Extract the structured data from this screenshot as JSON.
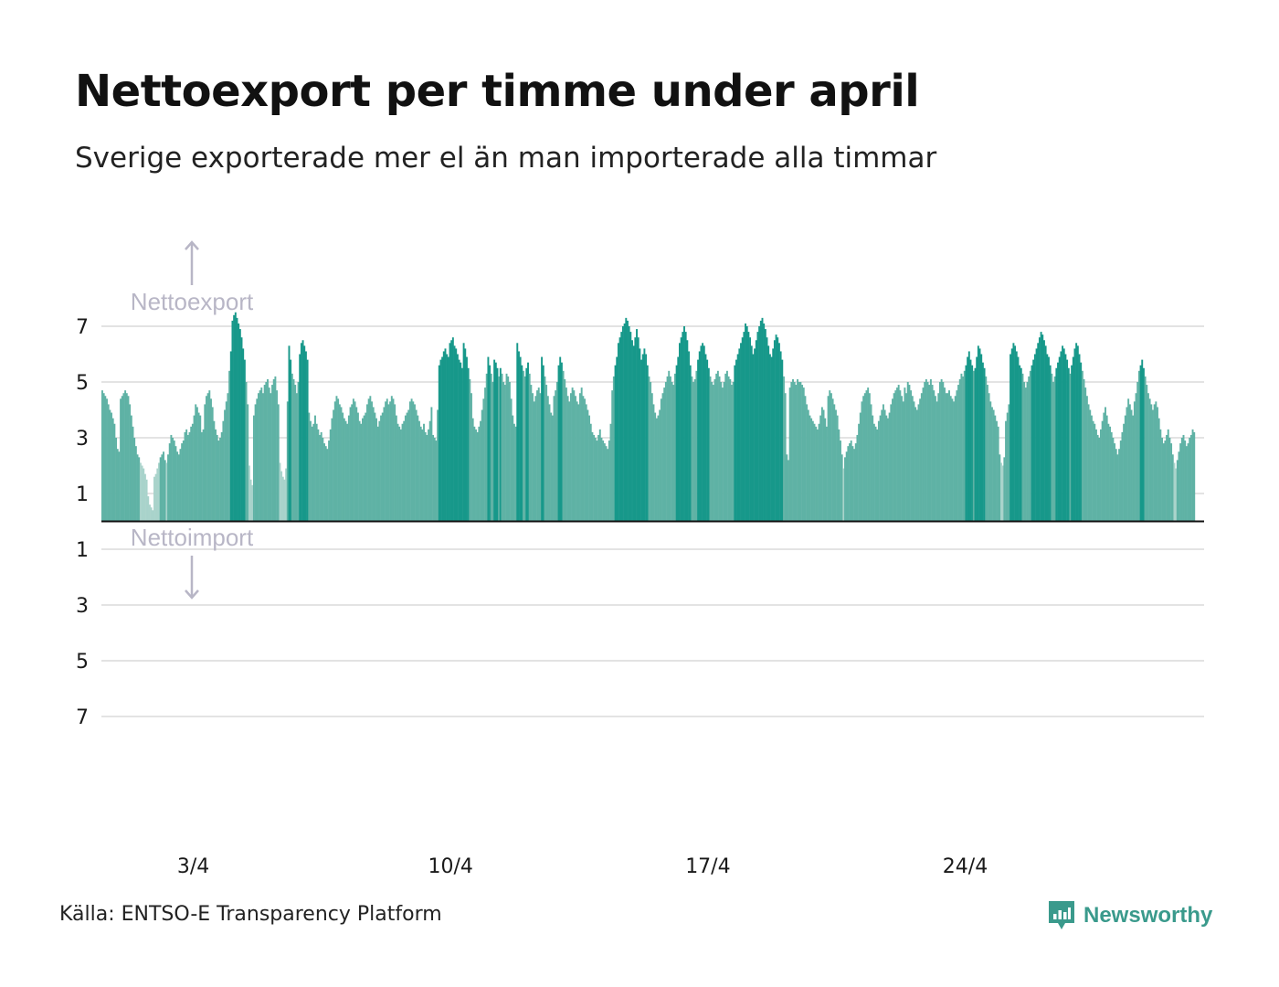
{
  "header": {
    "title": "Nettoexport per timme under april",
    "subtitle": "Sverige exporterade mer el än man importerade alla timmar"
  },
  "footer": {
    "source": "Källa: ENTSO-E Transparency Platform",
    "brand": "Newsworthy"
  },
  "colors": {
    "bar_high": "#17988a",
    "bar_mid": "#5fb2a5",
    "bar_low": "#a9d3cb",
    "grid": "#e3e3e3",
    "baseline": "#111111",
    "annotation": "#b8b6c6",
    "brand": "#3a9a8c"
  },
  "chart_data": {
    "type": "bar",
    "title": "Nettoexport per timme under april",
    "subtitle": "Sverige exporterade mer el än man importerade alla timmar",
    "xlabel": "",
    "ylabel": "",
    "ylim": [
      -7,
      7
    ],
    "y_ticks": [
      7,
      5,
      3,
      1,
      -1,
      -3,
      -5,
      -7
    ],
    "y_tick_labels": [
      "7",
      "5",
      "3",
      "1",
      "1",
      "3",
      "5",
      "7"
    ],
    "x_tick_days": [
      3,
      10,
      17,
      24
    ],
    "x_tick_labels": [
      "3/4",
      "10/4",
      "17/4",
      "24/4"
    ],
    "annotations": {
      "positive": "Nettoexport",
      "negative": "Nettoimport"
    },
    "grid": true,
    "hourly_resolution": 1,
    "days": [
      1,
      2,
      3,
      4,
      5,
      6,
      7,
      8,
      9,
      10,
      11,
      12,
      13,
      14,
      15,
      16,
      17,
      18,
      19,
      20,
      21,
      22,
      23,
      24,
      25,
      26,
      27,
      28,
      29,
      30
    ],
    "hourly_values_by_day": [
      [
        4.7,
        4.6,
        4.5,
        4.4,
        4.2,
        4.0,
        3.9,
        3.7,
        3.5,
        3.0,
        2.6,
        2.5,
        4.4,
        4.5,
        4.6,
        4.7,
        4.6,
        4.5,
        4.2,
        3.8,
        3.4,
        3.0,
        2.7,
        2.4
      ],
      [
        2.3,
        2.1,
        2.0,
        1.9,
        1.7,
        1.5,
        0.9,
        0.6,
        0.5,
        0.4,
        1.6,
        1.7,
        1.9,
        2.1,
        2.3,
        2.4,
        2.5,
        2.2,
        2.1,
        2.4,
        2.8,
        3.1,
        3.0,
        2.9
      ],
      [
        2.7,
        2.5,
        2.4,
        2.6,
        2.8,
        2.9,
        3.2,
        3.3,
        3.1,
        3.2,
        3.4,
        3.5,
        3.8,
        4.2,
        4.1,
        3.9,
        3.8,
        3.2,
        3.3,
        4.2,
        4.5,
        4.6,
        4.7,
        4.4
      ],
      [
        4.1,
        3.6,
        3.3,
        3.1,
        2.9,
        3.0,
        3.2,
        3.6,
        4.0,
        4.3,
        4.6,
        5.4,
        6.1,
        7.2,
        7.4,
        7.5,
        7.3,
        7.1,
        6.9,
        6.6,
        6.2,
        5.8,
        5.0,
        4.2
      ],
      [
        2.0,
        1.5,
        1.3,
        3.8,
        4.2,
        4.4,
        4.6,
        4.7,
        4.8,
        4.6,
        4.9,
        5.0,
        5.1,
        4.8,
        4.6,
        4.9,
        5.1,
        5.2,
        4.7,
        4.2,
        2.1,
        1.8,
        1.6,
        1.5
      ],
      [
        1.9,
        4.3,
        6.3,
        5.8,
        5.3,
        5.1,
        4.9,
        4.6,
        5.0,
        6.0,
        6.4,
        6.5,
        6.3,
        6.1,
        5.8,
        3.9,
        3.6,
        3.4,
        3.5,
        3.8,
        3.5,
        3.3,
        3.1,
        3.2
      ],
      [
        3.0,
        2.8,
        2.7,
        2.6,
        2.9,
        3.3,
        3.7,
        4.0,
        4.3,
        4.5,
        4.4,
        4.2,
        4.1,
        3.9,
        3.7,
        3.6,
        3.5,
        3.8,
        4.1,
        4.2,
        4.4,
        4.3,
        4.1,
        3.9
      ],
      [
        3.6,
        3.5,
        3.7,
        3.8,
        3.9,
        4.2,
        4.4,
        4.5,
        4.3,
        4.1,
        3.9,
        3.7,
        3.4,
        3.6,
        3.8,
        3.9,
        4.1,
        4.3,
        4.4,
        4.2,
        4.3,
        4.5,
        4.4,
        4.2
      ],
      [
        3.8,
        3.5,
        3.4,
        3.3,
        3.5,
        3.6,
        3.8,
        3.9,
        4.0,
        4.3,
        4.4,
        4.3,
        4.2,
        4.0,
        3.8,
        3.6,
        3.4,
        3.3,
        3.5,
        3.2,
        3.1,
        3.3,
        3.6,
        4.1
      ],
      [
        3.1,
        3.0,
        2.9,
        4.0,
        5.6,
        5.8,
        5.9,
        6.1,
        6.2,
        6.0,
        5.9,
        6.4,
        6.5,
        6.6,
        6.3,
        6.2,
        6.0,
        5.8,
        5.7,
        5.5,
        6.4,
        6.2,
        5.9,
        5.5
      ],
      [
        5.1,
        4.6,
        3.7,
        3.4,
        3.3,
        3.2,
        3.4,
        3.6,
        4.0,
        4.4,
        4.8,
        5.3,
        5.9,
        5.6,
        5.3,
        5.0,
        5.8,
        5.7,
        5.5,
        5.2,
        5.5,
        5.3,
        5.0,
        4.9
      ],
      [
        5.3,
        5.2,
        5.0,
        4.4,
        3.8,
        3.5,
        3.4,
        6.4,
        6.1,
        5.9,
        5.6,
        5.4,
        5.2,
        5.5,
        5.7,
        5.3,
        4.9,
        4.6,
        4.3,
        4.5,
        4.7,
        4.8,
        4.6,
        5.9
      ],
      [
        5.6,
        5.2,
        4.9,
        4.5,
        4.2,
        3.9,
        3.8,
        4.5,
        4.7,
        5.0,
        5.6,
        5.9,
        5.7,
        5.4,
        5.1,
        4.8,
        4.5,
        4.3,
        4.6,
        4.8,
        4.7,
        4.5,
        4.3,
        4.2
      ],
      [
        4.6,
        4.8,
        4.5,
        4.4,
        4.2,
        4.0,
        3.8,
        3.5,
        3.2,
        3.1,
        3.0,
        2.9,
        3.1,
        3.3,
        3.0,
        2.9,
        2.8,
        2.7,
        2.6,
        2.9,
        3.5,
        4.7,
        5.2,
        5.6
      ],
      [
        5.9,
        6.4,
        6.6,
        6.8,
        7.0,
        7.1,
        7.3,
        7.2,
        7.0,
        6.8,
        6.5,
        6.3,
        6.6,
        6.9,
        6.6,
        6.2,
        5.8,
        6.0,
        6.2,
        6.0,
        5.6,
        5.2,
        5.0,
        4.6
      ],
      [
        4.2,
        3.9,
        3.7,
        3.8,
        4.0,
        4.4,
        4.6,
        4.8,
        5.0,
        5.2,
        5.4,
        5.2,
        5.0,
        4.9,
        5.3,
        5.6,
        5.9,
        6.4,
        6.6,
        6.8,
        7.0,
        6.8,
        6.5,
        6.1
      ],
      [
        5.6,
        5.2,
        5.0,
        5.1,
        5.4,
        5.8,
        6.1,
        6.3,
        6.4,
        6.3,
        6.0,
        5.8,
        5.5,
        5.2,
        5.0,
        4.9,
        5.1,
        5.3,
        5.4,
        5.2,
        5.0,
        4.8,
        5.0,
        5.3
      ],
      [
        5.4,
        5.2,
        5.1,
        4.9,
        5.0,
        5.6,
        5.8,
        6.0,
        6.2,
        6.4,
        6.6,
        6.8,
        7.1,
        7.0,
        6.8,
        6.6,
        6.3,
        6.0,
        6.2,
        6.5,
        6.8,
        7.0,
        7.2,
        7.3
      ],
      [
        7.1,
        6.9,
        6.6,
        6.3,
        6.0,
        5.9,
        6.2,
        6.5,
        6.7,
        6.6,
        6.4,
        6.1,
        5.8,
        5.2,
        4.6,
        2.4,
        2.2,
        4.8,
        5.0,
        5.1,
        5.0,
        4.9,
        5.1,
        5.0
      ],
      [
        5.0,
        4.9,
        4.8,
        4.5,
        4.2,
        4.0,
        3.8,
        3.7,
        3.6,
        3.5,
        3.4,
        3.3,
        3.5,
        3.8,
        4.1,
        4.0,
        3.7,
        3.4,
        4.5,
        4.7,
        4.6,
        4.4,
        4.2,
        4.0
      ],
      [
        3.8,
        3.3,
        2.9,
        2.4,
        1.9,
        2.3,
        2.5,
        2.7,
        2.8,
        2.9,
        2.7,
        2.6,
        2.8,
        3.1,
        3.5,
        3.9,
        4.3,
        4.5,
        4.6,
        4.7,
        4.8,
        4.6,
        4.2,
        3.8
      ],
      [
        3.5,
        3.4,
        3.3,
        3.6,
        3.8,
        4.0,
        4.2,
        4.0,
        3.8,
        3.7,
        3.9,
        4.2,
        4.4,
        4.6,
        4.7,
        4.8,
        4.9,
        4.7,
        4.5,
        4.3,
        4.8,
        4.6,
        5.0,
        4.9
      ],
      [
        4.7,
        4.5,
        4.3,
        4.1,
        4.0,
        4.2,
        4.4,
        4.6,
        4.8,
        5.0,
        5.1,
        5.0,
        4.9,
        5.1,
        4.9,
        4.7,
        4.5,
        4.3,
        4.6,
        5.0,
        5.1,
        5.0,
        4.8,
        4.6
      ],
      [
        4.6,
        4.7,
        4.5,
        4.4,
        4.3,
        4.5,
        4.7,
        4.9,
        5.1,
        5.3,
        5.2,
        5.4,
        5.6,
        5.9,
        6.1,
        5.8,
        5.6,
        5.4,
        5.5,
        5.9,
        6.3,
        6.2,
        6.0,
        5.7
      ],
      [
        5.5,
        5.2,
        4.9,
        4.6,
        4.3,
        4.1,
        4.0,
        3.8,
        3.6,
        3.4,
        2.4,
        2.1,
        2.0,
        2.3,
        3.6,
        3.9,
        4.2,
        6.0,
        6.2,
        6.4,
        6.3,
        6.1,
        5.9,
        5.6
      ],
      [
        5.5,
        5.3,
        5.0,
        4.8,
        5.0,
        5.2,
        5.4,
        5.6,
        5.8,
        6.0,
        6.2,
        6.4,
        6.6,
        6.8,
        6.7,
        6.5,
        6.3,
        6.0,
        5.9,
        5.6,
        5.3,
        5.0,
        5.2,
        5.5
      ],
      [
        5.7,
        5.9,
        6.1,
        6.3,
        6.2,
        6.0,
        5.8,
        5.5,
        5.3,
        5.6,
        5.9,
        6.2,
        6.4,
        6.3,
        6.0,
        5.7,
        5.4,
        5.1,
        4.8,
        4.5,
        4.2,
        4.0,
        3.8,
        3.6
      ],
      [
        3.5,
        3.3,
        3.1,
        3.0,
        3.3,
        3.6,
        3.9,
        4.1,
        3.8,
        3.5,
        3.4,
        3.2,
        3.0,
        2.8,
        2.6,
        2.4,
        2.6,
        2.9,
        3.2,
        3.5,
        3.8,
        4.1,
        4.4,
        4.2
      ],
      [
        4.0,
        3.8,
        4.3,
        4.6,
        5.0,
        5.4,
        5.6,
        5.8,
        5.5,
        5.2,
        4.9,
        4.6,
        4.4,
        4.2,
        4.0,
        4.2,
        4.3,
        4.1,
        3.7,
        3.3,
        3.0,
        2.8,
        2.9,
        3.1
      ],
      [
        3.3,
        3.0,
        2.8,
        2.4,
        2.1,
        1.9,
        2.2,
        2.5,
        2.8,
        3.0,
        3.1,
        2.9,
        2.7,
        2.8,
        3.0,
        3.1,
        3.3,
        3.2
      ]
    ]
  }
}
